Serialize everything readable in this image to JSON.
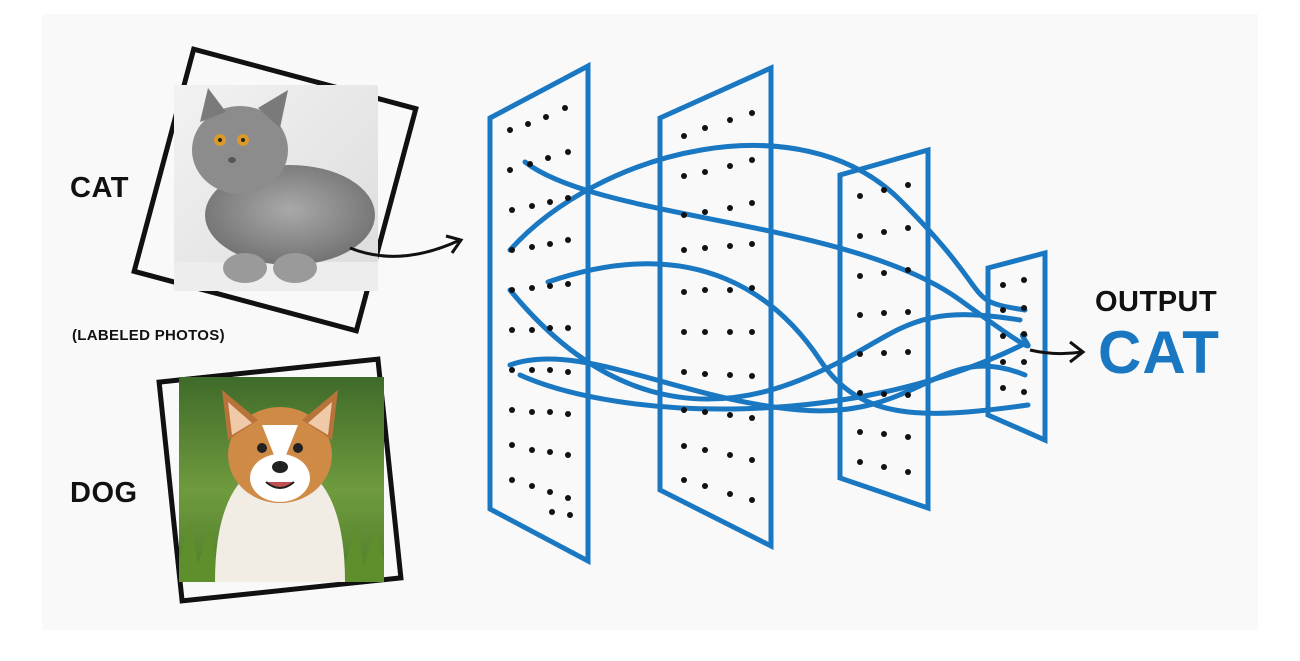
{
  "inputs": {
    "cat_label": "CAT",
    "dog_label": "DOG",
    "caption": "(LABELED PHOTOS)"
  },
  "output": {
    "heading": "OUTPUT",
    "result": "CAT"
  },
  "colors": {
    "network": "#1a78c2",
    "dots": "#111111",
    "text": "#111111",
    "background": "#f9f9f9"
  },
  "icons": [
    "cat-photo",
    "dog-photo",
    "arrow-icon"
  ]
}
